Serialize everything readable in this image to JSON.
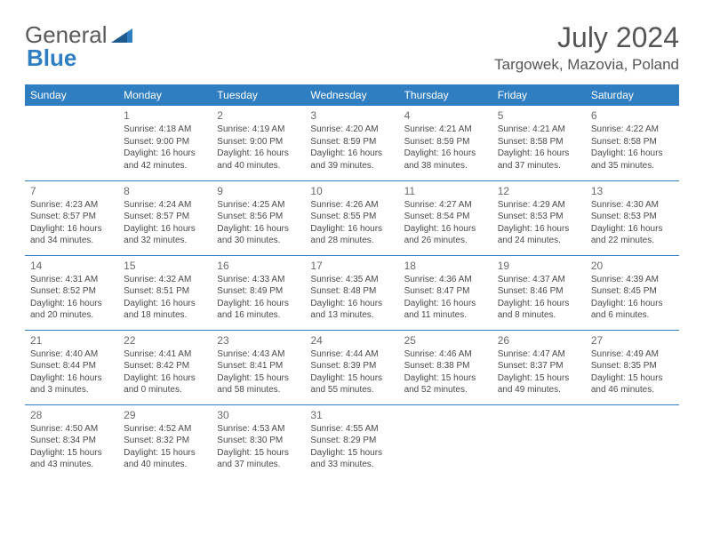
{
  "logo": {
    "text1": "General",
    "text2": "Blue"
  },
  "title": "July 2024",
  "location": "Targowek, Mazovia, Poland",
  "colors": {
    "header_bg": "#2f7ec2",
    "header_text": "#ffffff",
    "border": "#2f7ec2",
    "body_text": "#4a4a4a",
    "title_text": "#555555",
    "logo_gray": "#5a5a5a",
    "logo_blue": "#2f7ec2",
    "background": "#ffffff"
  },
  "weekdays": [
    "Sunday",
    "Monday",
    "Tuesday",
    "Wednesday",
    "Thursday",
    "Friday",
    "Saturday"
  ],
  "weeks": [
    [
      null,
      {
        "n": "1",
        "sunrise": "Sunrise: 4:18 AM",
        "sunset": "Sunset: 9:00 PM",
        "day1": "Daylight: 16 hours",
        "day2": "and 42 minutes."
      },
      {
        "n": "2",
        "sunrise": "Sunrise: 4:19 AM",
        "sunset": "Sunset: 9:00 PM",
        "day1": "Daylight: 16 hours",
        "day2": "and 40 minutes."
      },
      {
        "n": "3",
        "sunrise": "Sunrise: 4:20 AM",
        "sunset": "Sunset: 8:59 PM",
        "day1": "Daylight: 16 hours",
        "day2": "and 39 minutes."
      },
      {
        "n": "4",
        "sunrise": "Sunrise: 4:21 AM",
        "sunset": "Sunset: 8:59 PM",
        "day1": "Daylight: 16 hours",
        "day2": "and 38 minutes."
      },
      {
        "n": "5",
        "sunrise": "Sunrise: 4:21 AM",
        "sunset": "Sunset: 8:58 PM",
        "day1": "Daylight: 16 hours",
        "day2": "and 37 minutes."
      },
      {
        "n": "6",
        "sunrise": "Sunrise: 4:22 AM",
        "sunset": "Sunset: 8:58 PM",
        "day1": "Daylight: 16 hours",
        "day2": "and 35 minutes."
      }
    ],
    [
      {
        "n": "7",
        "sunrise": "Sunrise: 4:23 AM",
        "sunset": "Sunset: 8:57 PM",
        "day1": "Daylight: 16 hours",
        "day2": "and 34 minutes."
      },
      {
        "n": "8",
        "sunrise": "Sunrise: 4:24 AM",
        "sunset": "Sunset: 8:57 PM",
        "day1": "Daylight: 16 hours",
        "day2": "and 32 minutes."
      },
      {
        "n": "9",
        "sunrise": "Sunrise: 4:25 AM",
        "sunset": "Sunset: 8:56 PM",
        "day1": "Daylight: 16 hours",
        "day2": "and 30 minutes."
      },
      {
        "n": "10",
        "sunrise": "Sunrise: 4:26 AM",
        "sunset": "Sunset: 8:55 PM",
        "day1": "Daylight: 16 hours",
        "day2": "and 28 minutes."
      },
      {
        "n": "11",
        "sunrise": "Sunrise: 4:27 AM",
        "sunset": "Sunset: 8:54 PM",
        "day1": "Daylight: 16 hours",
        "day2": "and 26 minutes."
      },
      {
        "n": "12",
        "sunrise": "Sunrise: 4:29 AM",
        "sunset": "Sunset: 8:53 PM",
        "day1": "Daylight: 16 hours",
        "day2": "and 24 minutes."
      },
      {
        "n": "13",
        "sunrise": "Sunrise: 4:30 AM",
        "sunset": "Sunset: 8:53 PM",
        "day1": "Daylight: 16 hours",
        "day2": "and 22 minutes."
      }
    ],
    [
      {
        "n": "14",
        "sunrise": "Sunrise: 4:31 AM",
        "sunset": "Sunset: 8:52 PM",
        "day1": "Daylight: 16 hours",
        "day2": "and 20 minutes."
      },
      {
        "n": "15",
        "sunrise": "Sunrise: 4:32 AM",
        "sunset": "Sunset: 8:51 PM",
        "day1": "Daylight: 16 hours",
        "day2": "and 18 minutes."
      },
      {
        "n": "16",
        "sunrise": "Sunrise: 4:33 AM",
        "sunset": "Sunset: 8:49 PM",
        "day1": "Daylight: 16 hours",
        "day2": "and 16 minutes."
      },
      {
        "n": "17",
        "sunrise": "Sunrise: 4:35 AM",
        "sunset": "Sunset: 8:48 PM",
        "day1": "Daylight: 16 hours",
        "day2": "and 13 minutes."
      },
      {
        "n": "18",
        "sunrise": "Sunrise: 4:36 AM",
        "sunset": "Sunset: 8:47 PM",
        "day1": "Daylight: 16 hours",
        "day2": "and 11 minutes."
      },
      {
        "n": "19",
        "sunrise": "Sunrise: 4:37 AM",
        "sunset": "Sunset: 8:46 PM",
        "day1": "Daylight: 16 hours",
        "day2": "and 8 minutes."
      },
      {
        "n": "20",
        "sunrise": "Sunrise: 4:39 AM",
        "sunset": "Sunset: 8:45 PM",
        "day1": "Daylight: 16 hours",
        "day2": "and 6 minutes."
      }
    ],
    [
      {
        "n": "21",
        "sunrise": "Sunrise: 4:40 AM",
        "sunset": "Sunset: 8:44 PM",
        "day1": "Daylight: 16 hours",
        "day2": "and 3 minutes."
      },
      {
        "n": "22",
        "sunrise": "Sunrise: 4:41 AM",
        "sunset": "Sunset: 8:42 PM",
        "day1": "Daylight: 16 hours",
        "day2": "and 0 minutes."
      },
      {
        "n": "23",
        "sunrise": "Sunrise: 4:43 AM",
        "sunset": "Sunset: 8:41 PM",
        "day1": "Daylight: 15 hours",
        "day2": "and 58 minutes."
      },
      {
        "n": "24",
        "sunrise": "Sunrise: 4:44 AM",
        "sunset": "Sunset: 8:39 PM",
        "day1": "Daylight: 15 hours",
        "day2": "and 55 minutes."
      },
      {
        "n": "25",
        "sunrise": "Sunrise: 4:46 AM",
        "sunset": "Sunset: 8:38 PM",
        "day1": "Daylight: 15 hours",
        "day2": "and 52 minutes."
      },
      {
        "n": "26",
        "sunrise": "Sunrise: 4:47 AM",
        "sunset": "Sunset: 8:37 PM",
        "day1": "Daylight: 15 hours",
        "day2": "and 49 minutes."
      },
      {
        "n": "27",
        "sunrise": "Sunrise: 4:49 AM",
        "sunset": "Sunset: 8:35 PM",
        "day1": "Daylight: 15 hours",
        "day2": "and 46 minutes."
      }
    ],
    [
      {
        "n": "28",
        "sunrise": "Sunrise: 4:50 AM",
        "sunset": "Sunset: 8:34 PM",
        "day1": "Daylight: 15 hours",
        "day2": "and 43 minutes."
      },
      {
        "n": "29",
        "sunrise": "Sunrise: 4:52 AM",
        "sunset": "Sunset: 8:32 PM",
        "day1": "Daylight: 15 hours",
        "day2": "and 40 minutes."
      },
      {
        "n": "30",
        "sunrise": "Sunrise: 4:53 AM",
        "sunset": "Sunset: 8:30 PM",
        "day1": "Daylight: 15 hours",
        "day2": "and 37 minutes."
      },
      {
        "n": "31",
        "sunrise": "Sunrise: 4:55 AM",
        "sunset": "Sunset: 8:29 PM",
        "day1": "Daylight: 15 hours",
        "day2": "and 33 minutes."
      },
      null,
      null,
      null
    ]
  ]
}
